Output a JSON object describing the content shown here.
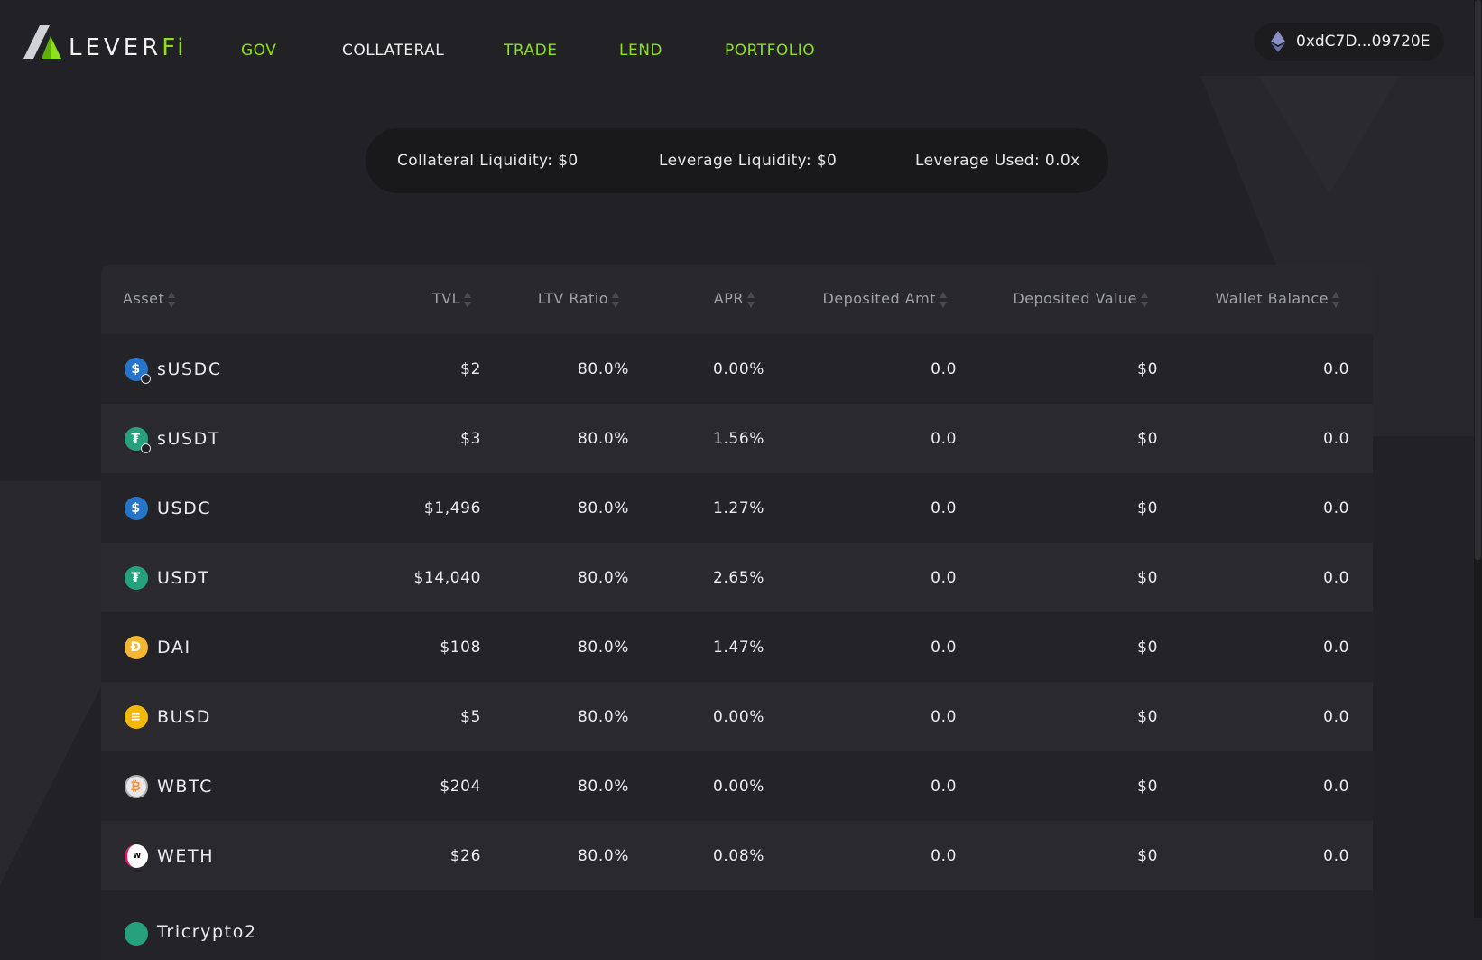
{
  "brand": {
    "logo_text_main": "LEVER",
    "logo_text_accent": "Fi"
  },
  "nav": [
    {
      "label": "GOV",
      "active": false
    },
    {
      "label": "COLLATERAL",
      "active": true
    },
    {
      "label": "TRADE",
      "active": false
    },
    {
      "label": "LEND",
      "active": false
    },
    {
      "label": "PORTFOLIO",
      "active": false
    }
  ],
  "wallet": {
    "icon": "ethereum-icon",
    "address": "0xdC7D...09720E"
  },
  "summary": {
    "collateral_liquidity": "Collateral Liquidity:  $0",
    "leverage_liquidity": "Leverage Liquidity:  $0",
    "leverage_used": "Leverage Used:  0.0x"
  },
  "colors": {
    "accent": "#8fe01c",
    "background": "#222226"
  },
  "table": {
    "headers": [
      "Asset",
      "TVL",
      "LTV Ratio",
      "APR",
      "Deposited Amt",
      "Deposited Value",
      "Wallet Balance"
    ],
    "rows": [
      {
        "asset": "sUSDC",
        "icon": "usdc-staked-icon",
        "tvl": "$2",
        "ltv": "80.0%",
        "apr": "0.00%",
        "dep_amt": "0.0",
        "dep_value": "$0",
        "wallet": "0.0"
      },
      {
        "asset": "sUSDT",
        "icon": "usdt-staked-icon",
        "tvl": "$3",
        "ltv": "80.0%",
        "apr": "1.56%",
        "dep_amt": "0.0",
        "dep_value": "$0",
        "wallet": "0.0"
      },
      {
        "asset": "USDC",
        "icon": "usdc-icon",
        "tvl": "$1,496",
        "ltv": "80.0%",
        "apr": "1.27%",
        "dep_amt": "0.0",
        "dep_value": "$0",
        "wallet": "0.0"
      },
      {
        "asset": "USDT",
        "icon": "usdt-icon",
        "tvl": "$14,040",
        "ltv": "80.0%",
        "apr": "2.65%",
        "dep_amt": "0.0",
        "dep_value": "$0",
        "wallet": "0.0"
      },
      {
        "asset": "DAI",
        "icon": "dai-icon",
        "tvl": "$108",
        "ltv": "80.0%",
        "apr": "1.47%",
        "dep_amt": "0.0",
        "dep_value": "$0",
        "wallet": "0.0"
      },
      {
        "asset": "BUSD",
        "icon": "busd-icon",
        "tvl": "$5",
        "ltv": "80.0%",
        "apr": "0.00%",
        "dep_amt": "0.0",
        "dep_value": "$0",
        "wallet": "0.0"
      },
      {
        "asset": "WBTC",
        "icon": "wbtc-icon",
        "tvl": "$204",
        "ltv": "80.0%",
        "apr": "0.00%",
        "dep_amt": "0.0",
        "dep_value": "$0",
        "wallet": "0.0"
      },
      {
        "asset": "WETH",
        "icon": "weth-icon",
        "tvl": "$26",
        "ltv": "80.0%",
        "apr": "0.08%",
        "dep_amt": "0.0",
        "dep_value": "$0",
        "wallet": "0.0"
      },
      {
        "asset": "Tricrypto2",
        "icon": "tricrypto-icon",
        "tvl": "",
        "ltv": "",
        "apr": "",
        "dep_amt": "",
        "dep_value": "",
        "wallet": ""
      }
    ]
  }
}
